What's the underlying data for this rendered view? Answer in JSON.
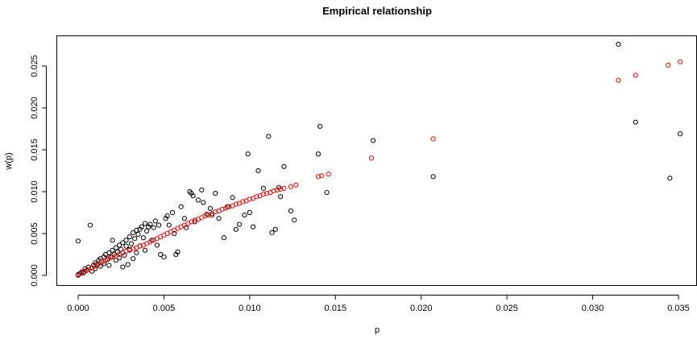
{
  "chart_data": {
    "type": "scatter",
    "title": "Empirical relationship",
    "xlabel": "p",
    "ylabel": "w(p)",
    "xlim": [
      -0.0005,
      0.0355
    ],
    "ylim": [
      -0.0005,
      0.028
    ],
    "x_ticks": [
      {
        "value": 0.0,
        "label": "0.000"
      },
      {
        "value": 0.005,
        "label": "0.005"
      },
      {
        "value": 0.01,
        "label": "0.010"
      },
      {
        "value": 0.015,
        "label": "0.015"
      },
      {
        "value": 0.02,
        "label": "0.020"
      },
      {
        "value": 0.025,
        "label": "0.025"
      },
      {
        "value": 0.03,
        "label": "0.030"
      },
      {
        "value": 0.035,
        "label": "0.035"
      }
    ],
    "y_ticks": [
      {
        "value": 0.0,
        "label": "0.000"
      },
      {
        "value": 0.005,
        "label": "0.005"
      },
      {
        "value": 0.01,
        "label": "0.010"
      },
      {
        "value": 0.015,
        "label": "0.015"
      },
      {
        "value": 0.02,
        "label": "0.020"
      },
      {
        "value": 0.025,
        "label": "0.025"
      }
    ],
    "grid": false,
    "series": [
      {
        "color": "#000000",
        "marker": "open-circle",
        "points": [
          [
            0.0,
            0.0041
          ],
          [
            0.0,
            0.0001
          ],
          [
            0.0001,
            0.0002
          ],
          [
            0.0002,
            0.0004
          ],
          [
            0.0003,
            0.0003
          ],
          [
            0.0004,
            0.0008
          ],
          [
            0.0005,
            0.0006
          ],
          [
            0.0006,
            0.001
          ],
          [
            0.0007,
            0.006
          ],
          [
            0.0008,
            0.0005
          ],
          [
            0.0009,
            0.0012
          ],
          [
            0.001,
            0.0008
          ],
          [
            0.001,
            0.0015
          ],
          [
            0.0011,
            0.0013
          ],
          [
            0.0012,
            0.0018
          ],
          [
            0.0013,
            0.0011
          ],
          [
            0.0013,
            0.002
          ],
          [
            0.0014,
            0.0016
          ],
          [
            0.0015,
            0.0022
          ],
          [
            0.0015,
            0.0014
          ],
          [
            0.0016,
            0.0025
          ],
          [
            0.0017,
            0.0019
          ],
          [
            0.0018,
            0.0027
          ],
          [
            0.0018,
            0.0012
          ],
          [
            0.0019,
            0.0022
          ],
          [
            0.002,
            0.0042
          ],
          [
            0.002,
            0.003
          ],
          [
            0.0021,
            0.0025
          ],
          [
            0.0022,
            0.0018
          ],
          [
            0.0022,
            0.0033
          ],
          [
            0.0023,
            0.0028
          ],
          [
            0.0024,
            0.0036
          ],
          [
            0.0024,
            0.0021
          ],
          [
            0.0025,
            0.0031
          ],
          [
            0.0026,
            0.001
          ],
          [
            0.0026,
            0.0039
          ],
          [
            0.0027,
            0.0024
          ],
          [
            0.0028,
            0.0035
          ],
          [
            0.0028,
            0.0042
          ],
          [
            0.0029,
            0.0013
          ],
          [
            0.003,
            0.0046
          ],
          [
            0.003,
            0.0031
          ],
          [
            0.0031,
            0.0038
          ],
          [
            0.0032,
            0.0051
          ],
          [
            0.0032,
            0.002
          ],
          [
            0.0033,
            0.0044
          ],
          [
            0.0034,
            0.0054
          ],
          [
            0.0034,
            0.0027
          ],
          [
            0.0035,
            0.0049
          ],
          [
            0.0036,
            0.0055
          ],
          [
            0.0036,
            0.0035
          ],
          [
            0.0037,
            0.0058
          ],
          [
            0.0038,
            0.0045
          ],
          [
            0.0039,
            0.0062
          ],
          [
            0.0039,
            0.003
          ],
          [
            0.004,
            0.0053
          ],
          [
            0.0041,
            0.0058
          ],
          [
            0.0042,
            0.0061
          ],
          [
            0.0043,
            0.0042
          ],
          [
            0.0044,
            0.0057
          ],
          [
            0.0045,
            0.0065
          ],
          [
            0.0046,
            0.0036
          ],
          [
            0.0047,
            0.006
          ],
          [
            0.0048,
            0.0025
          ],
          [
            0.005,
            0.0022
          ],
          [
            0.0051,
            0.0068
          ],
          [
            0.0052,
            0.0071
          ],
          [
            0.0053,
            0.006
          ],
          [
            0.0055,
            0.0075
          ],
          [
            0.0056,
            0.005
          ],
          [
            0.0057,
            0.0025
          ],
          [
            0.0058,
            0.0028
          ],
          [
            0.006,
            0.0082
          ],
          [
            0.0062,
            0.0068
          ],
          [
            0.0063,
            0.0057
          ],
          [
            0.0065,
            0.01
          ],
          [
            0.0066,
            0.0098
          ],
          [
            0.0067,
            0.0095
          ],
          [
            0.0068,
            0.0064
          ],
          [
            0.007,
            0.009
          ],
          [
            0.0072,
            0.0102
          ],
          [
            0.0073,
            0.0087
          ],
          [
            0.0075,
            0.0073
          ],
          [
            0.0077,
            0.008
          ],
          [
            0.0078,
            0.0072
          ],
          [
            0.008,
            0.0098
          ],
          [
            0.0082,
            0.0068
          ],
          [
            0.0085,
            0.0045
          ],
          [
            0.0087,
            0.0082
          ],
          [
            0.009,
            0.0093
          ],
          [
            0.0092,
            0.0055
          ],
          [
            0.0094,
            0.0061
          ],
          [
            0.0097,
            0.0072
          ],
          [
            0.0099,
            0.0145
          ],
          [
            0.01,
            0.0075
          ],
          [
            0.0102,
            0.0058
          ],
          [
            0.0105,
            0.0125
          ],
          [
            0.0108,
            0.0104
          ],
          [
            0.0111,
            0.0166
          ],
          [
            0.0113,
            0.0051
          ],
          [
            0.0115,
            0.0055
          ],
          [
            0.0117,
            0.0105
          ],
          [
            0.0118,
            0.0094
          ],
          [
            0.012,
            0.013
          ],
          [
            0.0124,
            0.0077
          ],
          [
            0.0126,
            0.0066
          ],
          [
            0.014,
            0.0145
          ],
          [
            0.0141,
            0.0178
          ],
          [
            0.0145,
            0.0099
          ],
          [
            0.0172,
            0.0161
          ],
          [
            0.0207,
            0.0118
          ],
          [
            0.0315,
            0.0276
          ],
          [
            0.0325,
            0.0183
          ],
          [
            0.0345,
            0.0116
          ],
          [
            0.0351,
            0.0169
          ]
        ]
      },
      {
        "color": "#ff0000",
        "marker": "open-circle",
        "points": [
          [
            0.0,
            0.0
          ],
          [
            0.0002,
            0.0003
          ],
          [
            0.0004,
            0.0005
          ],
          [
            0.0006,
            0.0007
          ],
          [
            0.0008,
            0.0009
          ],
          [
            0.001,
            0.0011
          ],
          [
            0.0012,
            0.0014
          ],
          [
            0.0014,
            0.0016
          ],
          [
            0.0016,
            0.0018
          ],
          [
            0.0018,
            0.002
          ],
          [
            0.002,
            0.0022
          ],
          [
            0.0022,
            0.0023
          ],
          [
            0.0024,
            0.0025
          ],
          [
            0.0026,
            0.0027
          ],
          [
            0.0028,
            0.0029
          ],
          [
            0.003,
            0.003
          ],
          [
            0.0032,
            0.0032
          ],
          [
            0.0034,
            0.0033
          ],
          [
            0.0036,
            0.0035
          ],
          [
            0.0038,
            0.0036
          ],
          [
            0.004,
            0.0038
          ],
          [
            0.0042,
            0.004
          ],
          [
            0.0044,
            0.0042
          ],
          [
            0.0046,
            0.0044
          ],
          [
            0.0048,
            0.0046
          ],
          [
            0.005,
            0.0048
          ],
          [
            0.0052,
            0.005
          ],
          [
            0.0054,
            0.0052
          ],
          [
            0.0056,
            0.0054
          ],
          [
            0.0058,
            0.0056
          ],
          [
            0.006,
            0.0058
          ],
          [
            0.0062,
            0.006
          ],
          [
            0.0064,
            0.0062
          ],
          [
            0.0066,
            0.0064
          ],
          [
            0.0068,
            0.0066
          ],
          [
            0.007,
            0.0067
          ],
          [
            0.0072,
            0.0069
          ],
          [
            0.0074,
            0.0071
          ],
          [
            0.0076,
            0.0072
          ],
          [
            0.0078,
            0.0074
          ],
          [
            0.008,
            0.0076
          ],
          [
            0.0082,
            0.0077
          ],
          [
            0.0084,
            0.0079
          ],
          [
            0.0086,
            0.008
          ],
          [
            0.0088,
            0.0082
          ],
          [
            0.009,
            0.0083
          ],
          [
            0.0092,
            0.0085
          ],
          [
            0.0094,
            0.0086
          ],
          [
            0.0096,
            0.0088
          ],
          [
            0.0098,
            0.0089
          ],
          [
            0.01,
            0.0091
          ],
          [
            0.0102,
            0.0092
          ],
          [
            0.0104,
            0.0094
          ],
          [
            0.0106,
            0.0095
          ],
          [
            0.0108,
            0.0097
          ],
          [
            0.011,
            0.0098
          ],
          [
            0.0112,
            0.0099
          ],
          [
            0.0114,
            0.0101
          ],
          [
            0.0116,
            0.0102
          ],
          [
            0.0118,
            0.0103
          ],
          [
            0.012,
            0.0104
          ],
          [
            0.0124,
            0.0106
          ],
          [
            0.0127,
            0.0108
          ],
          [
            0.014,
            0.0118
          ],
          [
            0.0142,
            0.0119
          ],
          [
            0.0146,
            0.0121
          ],
          [
            0.0171,
            0.014
          ],
          [
            0.0207,
            0.0163
          ],
          [
            0.0315,
            0.0233
          ],
          [
            0.0325,
            0.0239
          ],
          [
            0.0344,
            0.0251
          ],
          [
            0.0351,
            0.0255
          ]
        ]
      }
    ]
  }
}
